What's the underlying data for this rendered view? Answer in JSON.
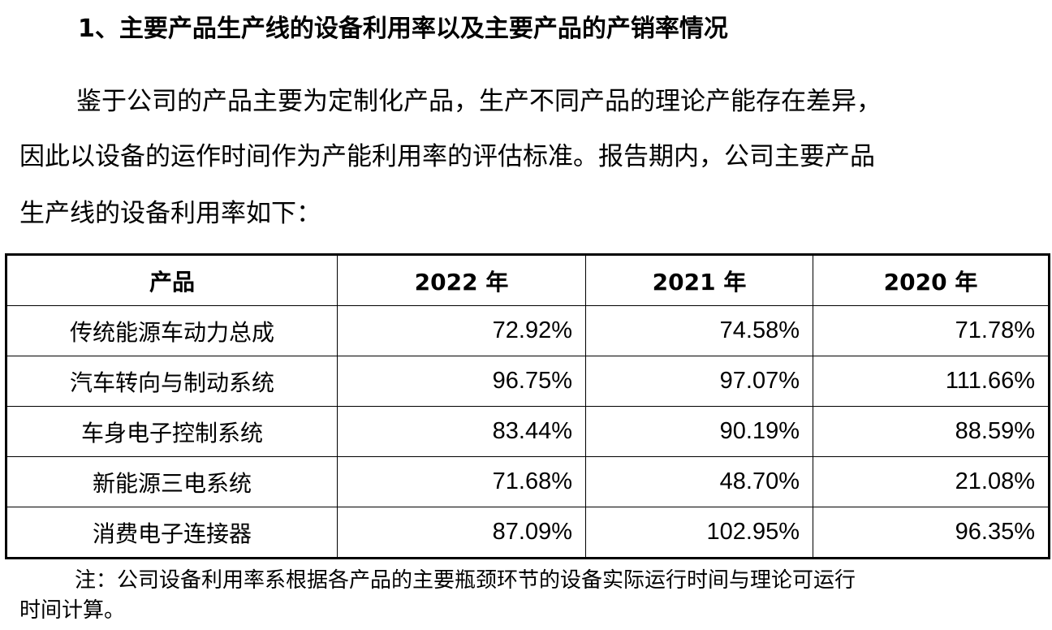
{
  "heading": "1、主要产品生产线的设备利用率以及主要产品的产销率情况",
  "paragraph": {
    "line1": "鉴于公司的产品主要为定制化产品，生产不同产品的理论产能存在差异，",
    "line2": "因此以设备的运作时间作为产能利用率的评估标准。报告期内，公司主要产品",
    "line3": "生产线的设备利用率如下："
  },
  "table": {
    "headers": [
      "产品",
      "2022 年",
      "2021 年",
      "2020 年"
    ],
    "rows": [
      {
        "product": "传统能源车动力总成",
        "y2022": "72.92%",
        "y2021": "74.58%",
        "y2020": "71.78%"
      },
      {
        "product": "汽车转向与制动系统",
        "y2022": "96.75%",
        "y2021": "97.07%",
        "y2020": "111.66%"
      },
      {
        "product": "车身电子控制系统",
        "y2022": "83.44%",
        "y2021": "90.19%",
        "y2020": "88.59%"
      },
      {
        "product": "新能源三电系统",
        "y2022": "71.68%",
        "y2021": "48.70%",
        "y2020": "21.08%"
      },
      {
        "product": "消费电子连接器",
        "y2022": "87.09%",
        "y2021": "102.95%",
        "y2020": "96.35%"
      }
    ]
  },
  "note": {
    "line1": "注：公司设备利用率系根据各产品的主要瓶颈环节的设备实际运行时间与理论可运行",
    "line2": "时间计算。"
  }
}
